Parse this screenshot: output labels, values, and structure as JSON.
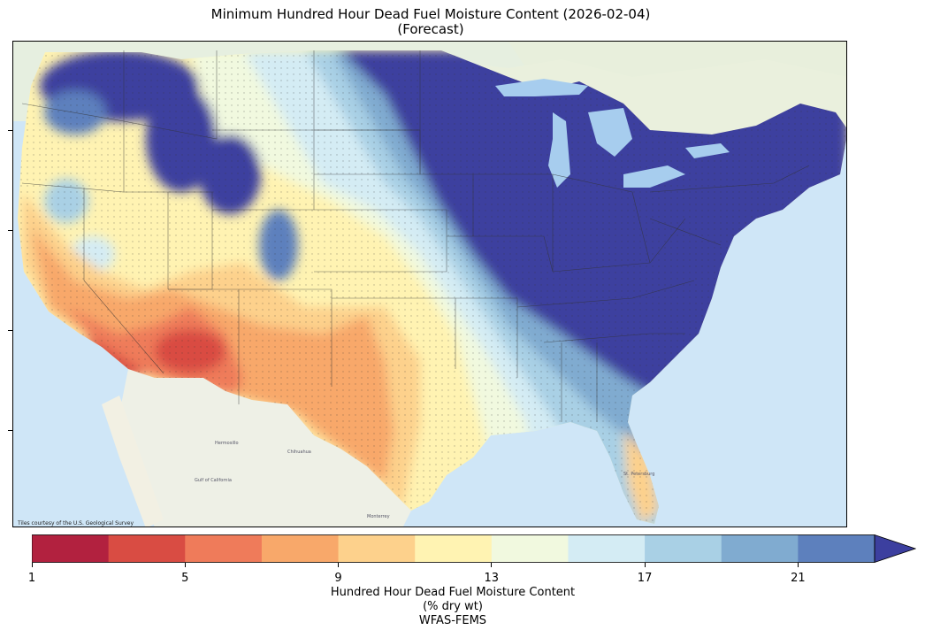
{
  "figure": {
    "title_line1": "Minimum Hundred Hour Dead Fuel Moisture Content (2026-02-04)",
    "title_line2": "(Forecast)"
  },
  "map": {
    "credit": "Tiles courtesy of the U.S. Geological Survey",
    "colors": {
      "ocean": "#cfe6f7",
      "land": "#eef0e6",
      "lakes": "#a7cdee"
    }
  },
  "colorbar": {
    "ticks": [
      "1",
      "5",
      "9",
      "13",
      "17",
      "21"
    ],
    "caption_line1": "Hundred Hour Dead Fuel Moisture Content",
    "caption_line2": "(% dry wt)",
    "caption_line3": "WFAS-FEMS",
    "bins": [
      {
        "from": 1,
        "to": 3,
        "color": "#b2213f"
      },
      {
        "from": 3,
        "to": 5,
        "color": "#d94c43"
      },
      {
        "from": 5,
        "to": 7,
        "color": "#ef7b5a"
      },
      {
        "from": 7,
        "to": 9,
        "color": "#f8a86a"
      },
      {
        "from": 9,
        "to": 11,
        "color": "#fdd18c"
      },
      {
        "from": 11,
        "to": 13,
        "color": "#fff3b2"
      },
      {
        "from": 13,
        "to": 15,
        "color": "#f1f9df"
      },
      {
        "from": 15,
        "to": 17,
        "color": "#d4ecf4"
      },
      {
        "from": 17,
        "to": 19,
        "color": "#a9d0e5"
      },
      {
        "from": 19,
        "to": 21,
        "color": "#80abd0"
      },
      {
        "from": 21,
        "to": 23,
        "color": "#5d80bd"
      },
      {
        "from": 23,
        "to": null,
        "color": "#3c3f9f"
      }
    ]
  }
}
